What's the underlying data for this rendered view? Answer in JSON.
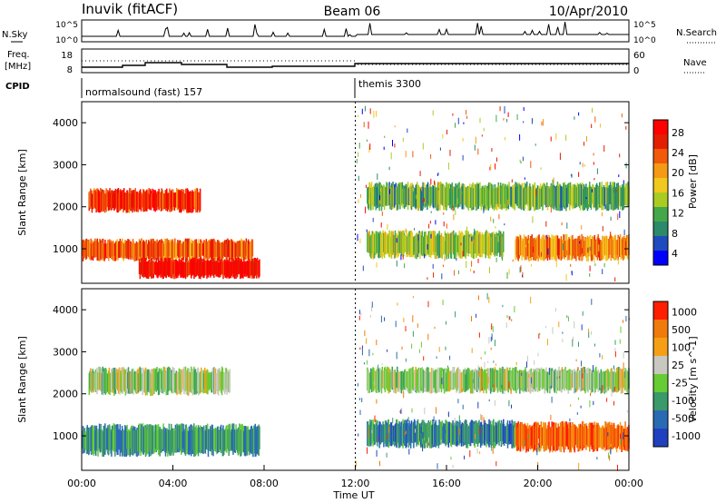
{
  "header": {
    "station": "Inuvik (fitACF)",
    "beam": "Beam 06",
    "date": "10/Apr/2010"
  },
  "top_panels": {
    "nsky_label": "N.Sky",
    "nsky_ticks": [
      "10^5",
      "10^0"
    ],
    "nsearch_label": "N.Search",
    "nsearch_ticks": [
      "10^5",
      "10^0"
    ],
    "freq_label_line1": "Freq.",
    "freq_label_line2": "[MHz]",
    "freq_ticks": [
      "18",
      "8"
    ],
    "nave_label": "Nave",
    "nave_ticks": [
      "60",
      "0"
    ],
    "cpid_label": "CPID",
    "cpid_modes": [
      {
        "name": "normalsound (fast) 157",
        "start_hour": 0,
        "end_hour": 12
      },
      {
        "name": "themis 3300",
        "start_hour": 12,
        "end_hour": 24
      }
    ]
  },
  "chart_data": [
    {
      "type": "heatmap",
      "title": "",
      "xlabel": "",
      "ylabel": "Slant Range [km]",
      "xlim": [
        0,
        24
      ],
      "ylim": [
        180,
        4500
      ],
      "yticks": [
        "1000",
        "2000",
        "3000",
        "4000"
      ],
      "colorbar_label": "Power [dB]",
      "colorbar_ticks": [
        "28",
        "24",
        "20",
        "16",
        "12",
        "8",
        "4"
      ],
      "colors": [
        "#0000ff",
        "#1e4bbe",
        "#2a8a6a",
        "#44a84a",
        "#aacc22",
        "#f0c81e",
        "#f59a14",
        "#f05a0a",
        "#e41e00",
        "#ff0000"
      ],
      "echo_bands": [
        {
          "start_hour": 0.3,
          "end_hour": 5.2,
          "range_km": [
            1850,
            2450
          ],
          "level": 0.85
        },
        {
          "start_hour": 0.0,
          "end_hour": 7.5,
          "range_km": [
            700,
            1250
          ],
          "level": 0.75
        },
        {
          "start_hour": 2.5,
          "end_hour": 7.8,
          "range_km": [
            280,
            800
          ],
          "level": 0.95
        },
        {
          "start_hour": 12.5,
          "end_hour": 24.0,
          "range_km": [
            1900,
            2600
          ],
          "level": 0.35
        },
        {
          "start_hour": 12.5,
          "end_hour": 18.5,
          "range_km": [
            750,
            1450
          ],
          "level": 0.45
        },
        {
          "start_hour": 19.0,
          "end_hour": 24.0,
          "range_km": [
            700,
            1350
          ],
          "level": 0.7
        }
      ]
    },
    {
      "type": "heatmap",
      "title": "",
      "xlabel": "Time UT",
      "ylabel": "Slant Range [km]",
      "xlim": [
        0,
        24
      ],
      "ylim": [
        180,
        4500
      ],
      "xticks": [
        "00:00",
        "04:00",
        "08:00",
        "12:00",
        "16:00",
        "20:00",
        "00:00"
      ],
      "yticks": [
        "1000",
        "2000",
        "3000",
        "4000"
      ],
      "colorbar_label": "Velocity [m s^-1]",
      "colorbar_ticks": [
        "1000",
        "500",
        "100",
        "25",
        "-25",
        "-100",
        "-500",
        "-1000"
      ],
      "colors": [
        "#2040c0",
        "#2a6ab4",
        "#3a9a6a",
        "#66cc33",
        "#c8c8c0",
        "#f5a014",
        "#f07a0a",
        "#ff1e00"
      ],
      "echo_bands": [
        {
          "start_hour": 0.3,
          "end_hour": 6.5,
          "range_km": [
            1950,
            2650
          ],
          "level": 0.5
        },
        {
          "start_hour": 0.0,
          "end_hour": 7.8,
          "range_km": [
            500,
            1300
          ],
          "level": 0.3
        },
        {
          "start_hour": 12.5,
          "end_hour": 24.0,
          "range_km": [
            2000,
            2650
          ],
          "level": 0.5
        },
        {
          "start_hour": 12.5,
          "end_hour": 19.0,
          "range_km": [
            700,
            1400
          ],
          "level": 0.25
        },
        {
          "start_hour": 19.0,
          "end_hour": 24.0,
          "range_km": [
            600,
            1350
          ],
          "level": 0.85
        }
      ]
    }
  ]
}
